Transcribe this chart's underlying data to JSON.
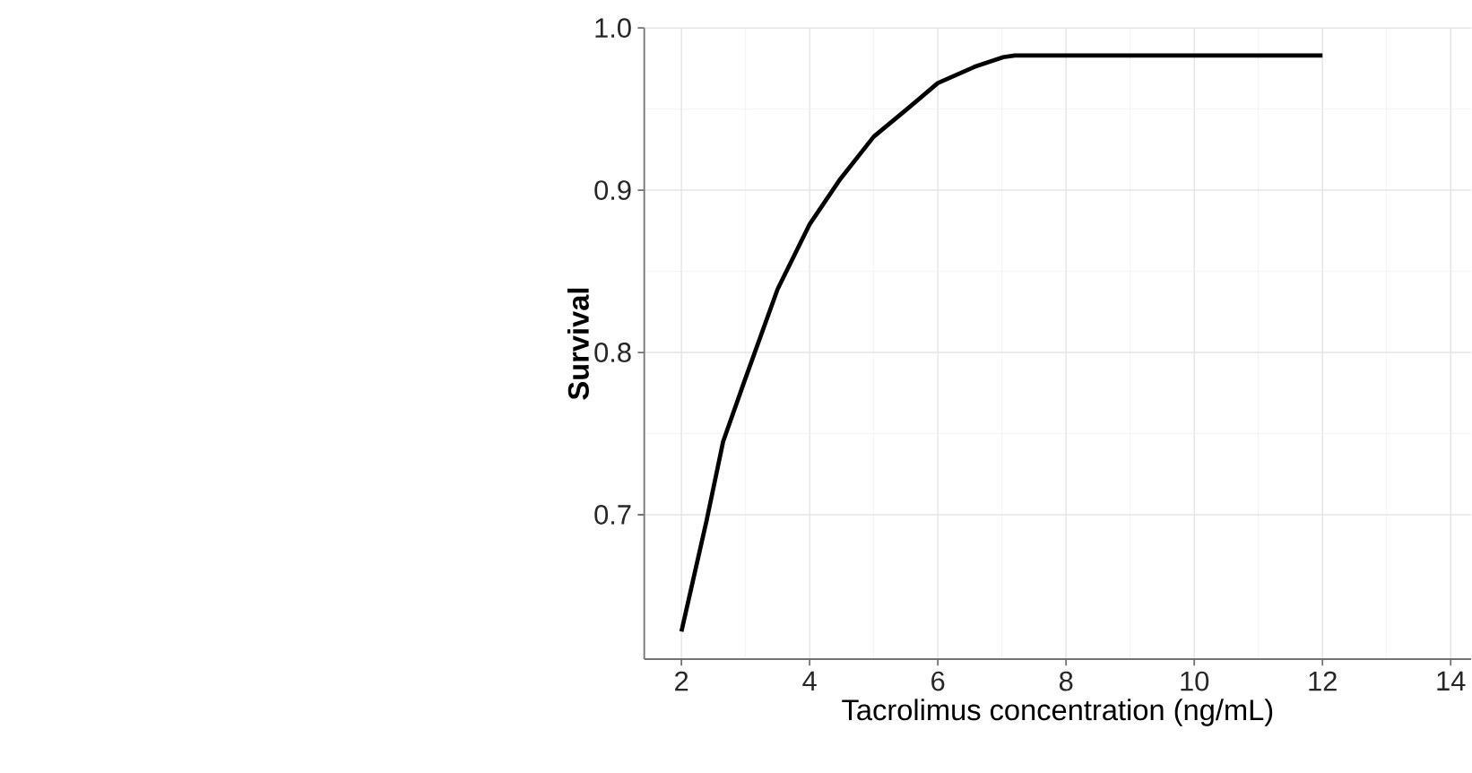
{
  "chart_data": {
    "type": "line",
    "xlabel": "Tacrolimus concentration (ng/mL)",
    "ylabel": "Survival",
    "x": [
      2,
      2.39,
      2.65,
      2.98,
      3.5,
      4.0,
      4.48,
      5.0,
      5.52,
      6.0,
      6.57,
      7.02,
      7.2,
      12
    ],
    "series": [
      {
        "color": "#000000",
        "values": [
          0.628,
          0.696,
          0.745,
          0.782,
          0.839,
          0.879,
          0.907,
          0.933,
          0.95,
          0.966,
          0.976,
          0.982,
          0.983,
          0.983
        ]
      }
    ],
    "xlim": [
      1.42,
      14.32
    ],
    "ylim": [
      0.611,
      1.0
    ],
    "xticks": [
      2,
      4,
      6,
      8,
      10,
      12,
      14
    ],
    "yticks": [
      {
        "value": 0.7,
        "label": "0.7"
      },
      {
        "value": 0.8,
        "label": "0.8"
      },
      {
        "value": 0.9,
        "label": "0.9"
      },
      {
        "value": 1.0,
        "label": "1.0"
      }
    ],
    "grid": true,
    "marker": "none",
    "line_style": "solid"
  }
}
